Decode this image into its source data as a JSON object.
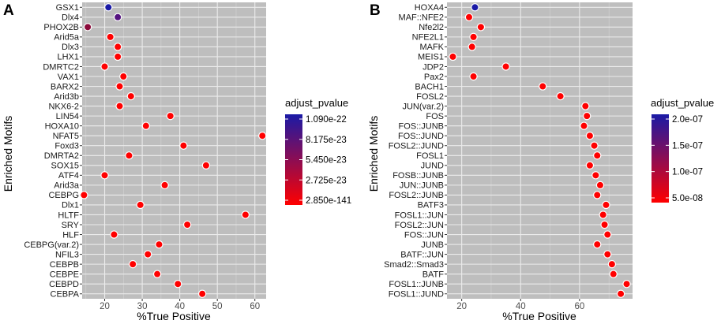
{
  "chart_data": [
    {
      "type": "scatter",
      "panel_label": "A",
      "xlabel": "%True Positive",
      "ylabel": "Enriched Motifs",
      "xlim": [
        14,
        63
      ],
      "xticks": [
        20,
        30,
        40,
        50,
        60
      ],
      "xticks_text": [
        "20",
        "30",
        "40",
        "50",
        "60"
      ],
      "grid": true,
      "color_legend": {
        "title": "adjust_pvalue",
        "position": "right",
        "low_color": "#FF0000",
        "high_color": "#1A1AA6",
        "labels": [
          "1.090e-22",
          "8.175e-23",
          "5.450e-23",
          "2.725e-23",
          "2.850e-141"
        ]
      },
      "categories": [
        "GSX1",
        "Dlx4",
        "PHOX2B",
        "Arid5a",
        "Dlx3",
        "LHX1",
        "DMRTC2",
        "VAX1",
        "BARX2",
        "Arid3b",
        "NKX6-2",
        "LIN54",
        "HOXA10",
        "NFAT5",
        "Foxd3",
        "DMRTA2",
        "SOX15",
        "ATF4",
        "Arid3a",
        "CEBPG",
        "Dlx1",
        "HLTF",
        "SRY",
        "HLF",
        "CEBPG(var.2)",
        "NFIL3",
        "CEBPB",
        "CEBPE",
        "CEBPD",
        "CEBPA"
      ],
      "values": [
        21,
        23.5,
        15.5,
        21.5,
        23.5,
        23.5,
        20,
        25,
        24,
        27,
        24,
        37.5,
        31,
        62,
        41,
        26.5,
        47,
        20,
        36,
        14.5,
        29.5,
        57.5,
        42,
        22.5,
        34.5,
        31.5,
        27.5,
        34,
        39.5,
        46
      ],
      "colors": [
        "#1A1AA6",
        "#551480",
        "#8B0A3A",
        "#FF0000",
        "#FF0000",
        "#FF0000",
        "#FF0000",
        "#FF0000",
        "#FF0000",
        "#FF0000",
        "#FF0000",
        "#FF0000",
        "#FF0000",
        "#FF0000",
        "#FF0000",
        "#FF0000",
        "#FF0000",
        "#FF0000",
        "#FF0000",
        "#FF0000",
        "#FF0000",
        "#FF0000",
        "#FF0000",
        "#FF0000",
        "#FF0000",
        "#FF0000",
        "#FF0000",
        "#FF0000",
        "#FF0000",
        "#FF0000"
      ]
    },
    {
      "type": "scatter",
      "panel_label": "B",
      "xlabel": "%True Positive",
      "ylabel": "Enriched Motifs",
      "xlim": [
        15,
        78
      ],
      "xticks": [
        20,
        40,
        60
      ],
      "xticks_text": [
        "20",
        "40",
        "60"
      ],
      "grid": true,
      "color_legend": {
        "title": "adjust_pvalue",
        "position": "right",
        "low_color": "#FF0000",
        "high_color": "#1A1AA6",
        "labels": [
          "2.0e-07",
          "1.5e-07",
          "1.0e-07",
          "5.0e-08"
        ]
      },
      "categories": [
        "HOXA4",
        "MAF::NFE2",
        "Nfe2l2",
        "NFE2L1",
        "MAFK",
        "MEIS1",
        "JDP2",
        "Pax2",
        "BACH1",
        "FOSL2",
        "JUN(var.2)",
        "FOS",
        "FOS::JUNB",
        "FOS::JUND",
        "FOSL2::JUND",
        "FOSL1",
        "JUND",
        "FOSB::JUNB",
        "JUN::JUNB",
        "FOSL2::JUNB",
        "BATF3",
        "FOSL1::JUN",
        "FOSL2::JUN",
        "FOS::JUN",
        "JUNB",
        "BATF::JUN",
        "Smad2::Smad3",
        "BATF",
        "FOSL1::JUNB",
        "FOSL1::JUND"
      ],
      "values": [
        24.5,
        22.5,
        26.5,
        24,
        23.5,
        17,
        35,
        24,
        47.5,
        53.5,
        62,
        62.5,
        61.5,
        63.5,
        65,
        66,
        63.5,
        65.5,
        67,
        66,
        69,
        68,
        68.5,
        69.5,
        66,
        69.5,
        71,
        71.5,
        76,
        74
      ],
      "colors": [
        "#1A1AA6",
        "#FF0000",
        "#FF0000",
        "#FF0000",
        "#FF0000",
        "#FF0000",
        "#FF0000",
        "#FF0000",
        "#FF0000",
        "#FF0000",
        "#FF0000",
        "#FF0000",
        "#FF0000",
        "#FF0000",
        "#FF0000",
        "#FF0000",
        "#FF0000",
        "#FF0000",
        "#FF0000",
        "#FF0000",
        "#FF0000",
        "#FF0000",
        "#FF0000",
        "#FF0000",
        "#FF0000",
        "#FF0000",
        "#FF0000",
        "#FF0000",
        "#FF0000",
        "#FF0000"
      ]
    }
  ]
}
